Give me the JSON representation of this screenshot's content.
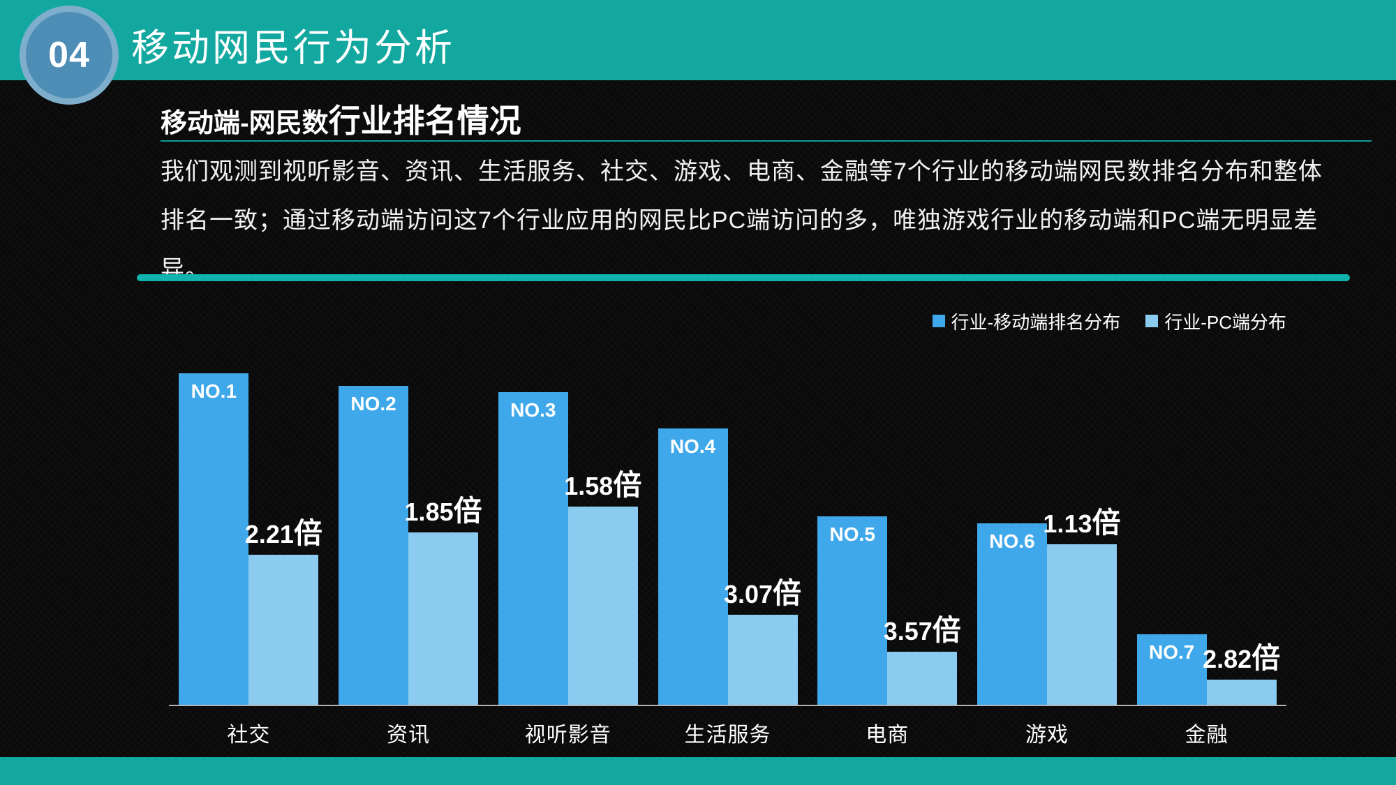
{
  "slide": {
    "badge_number": "04",
    "header_title": "移动网民行为分析",
    "section_title_part1": "移动端-网民数",
    "section_title_part2": "行业排名情况",
    "paragraph_line1": "我们观测到视听影音、资讯、生活服务、社交、游戏、电商、金融等7个行业的移动端网民数排名分布和整体",
    "paragraph_line2": "排名一致；通过移动端访问这7个行业应用的网民比PC端访问的多，唯独游戏行业的移动端和PC端无明显差异。"
  },
  "colors": {
    "teal": "#12A8A0",
    "divider": "#0FB4AE",
    "mobile_bar": "#3FA8EA",
    "pc_bar": "#8CCBF0",
    "badge_fill": "#4E8DB5",
    "badge_ring": "#7EAECB"
  },
  "chart_data": {
    "type": "bar",
    "title": "",
    "xlabel": "",
    "ylabel": "",
    "grid": false,
    "value_axis_visible": false,
    "legend_position": "top-right",
    "categories": [
      "社交",
      "资讯",
      "视听影音",
      "生活服务",
      "电商",
      "游戏",
      "金融"
    ],
    "series": [
      {
        "name": "行业-移动端排名分布",
        "color": "#3FA8EA",
        "values": [
          100,
          96.2,
          94.3,
          83.3,
          56.9,
          54.7,
          21.3
        ]
      },
      {
        "name": "行业-PC端分布",
        "color": "#8CCBF0",
        "values": [
          45.2,
          52.0,
          59.7,
          27.1,
          15.9,
          48.4,
          7.6
        ]
      }
    ],
    "bar_labels_mobile": [
      "NO.1",
      "NO.2",
      "NO.3",
      "NO.4",
      "NO.5",
      "NO.6",
      "NO.7"
    ],
    "bar_labels_pc_ratio": [
      "2.21倍",
      "1.85倍",
      "1.58倍",
      "3.07倍",
      "3.57倍",
      "1.13倍",
      "2.82倍"
    ]
  }
}
